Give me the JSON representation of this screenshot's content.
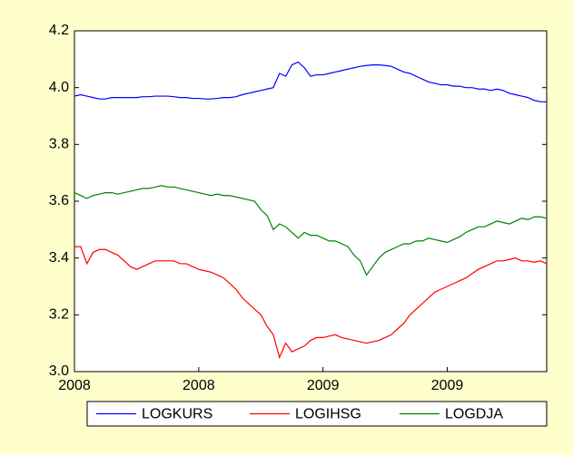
{
  "chart_data": {
    "type": "line",
    "categories": [
      "2008",
      null,
      null,
      null,
      null,
      null,
      null,
      null,
      null,
      null,
      null,
      null,
      null,
      null,
      null,
      null,
      null,
      null,
      null,
      null,
      "2008",
      null,
      null,
      null,
      null,
      null,
      null,
      null,
      null,
      null,
      null,
      null,
      null,
      null,
      null,
      null,
      null,
      null,
      null,
      null,
      "2009",
      null,
      null,
      null,
      null,
      null,
      null,
      null,
      null,
      null,
      null,
      null,
      null,
      null,
      null,
      null,
      null,
      null,
      null,
      null,
      "2009",
      null,
      null,
      null,
      null,
      null,
      null,
      null,
      null,
      null,
      null,
      null,
      null,
      null,
      null,
      null,
      null
    ],
    "series": [
      {
        "name": "LOGKURS",
        "color": "#0000ff",
        "values": [
          3.97,
          3.975,
          3.97,
          3.965,
          3.96,
          3.96,
          3.965,
          3.965,
          3.965,
          3.965,
          3.965,
          3.968,
          3.968,
          3.97,
          3.97,
          3.97,
          3.968,
          3.965,
          3.965,
          3.962,
          3.962,
          3.96,
          3.96,
          3.962,
          3.965,
          3.965,
          3.968,
          3.975,
          3.98,
          3.985,
          3.99,
          3.995,
          4.0,
          4.05,
          4.04,
          4.08,
          4.09,
          4.07,
          4.04,
          4.045,
          4.045,
          4.05,
          4.055,
          4.06,
          4.065,
          4.07,
          4.075,
          4.078,
          4.08,
          4.08,
          4.078,
          4.075,
          4.065,
          4.055,
          4.05,
          4.04,
          4.03,
          4.02,
          4.015,
          4.01,
          4.01,
          4.005,
          4.005,
          4.0,
          4.0,
          3.995,
          3.995,
          3.99,
          3.995,
          3.99,
          3.98,
          3.975,
          3.97,
          3.965,
          3.955,
          3.95,
          3.95
        ]
      },
      {
        "name": "LOGIHSG",
        "color": "#ff0000",
        "values": [
          3.44,
          3.44,
          3.38,
          3.42,
          3.43,
          3.43,
          3.42,
          3.41,
          3.39,
          3.37,
          3.36,
          3.37,
          3.38,
          3.39,
          3.39,
          3.39,
          3.39,
          3.38,
          3.38,
          3.37,
          3.36,
          3.355,
          3.35,
          3.34,
          3.33,
          3.31,
          3.29,
          3.26,
          3.24,
          3.22,
          3.2,
          3.16,
          3.13,
          3.05,
          3.1,
          3.07,
          3.08,
          3.09,
          3.11,
          3.12,
          3.12,
          3.125,
          3.13,
          3.12,
          3.115,
          3.11,
          3.105,
          3.1,
          3.105,
          3.11,
          3.12,
          3.13,
          3.15,
          3.17,
          3.2,
          3.22,
          3.24,
          3.26,
          3.28,
          3.29,
          3.3,
          3.31,
          3.32,
          3.33,
          3.345,
          3.36,
          3.37,
          3.38,
          3.39,
          3.39,
          3.395,
          3.4,
          3.39,
          3.39,
          3.385,
          3.39,
          3.38
        ]
      },
      {
        "name": "LOGDJA",
        "color": "#008000",
        "values": [
          3.63,
          3.62,
          3.61,
          3.62,
          3.625,
          3.63,
          3.63,
          3.625,
          3.63,
          3.635,
          3.64,
          3.645,
          3.645,
          3.65,
          3.655,
          3.65,
          3.65,
          3.645,
          3.64,
          3.635,
          3.63,
          3.625,
          3.62,
          3.625,
          3.62,
          3.62,
          3.615,
          3.61,
          3.605,
          3.6,
          3.57,
          3.55,
          3.5,
          3.52,
          3.51,
          3.49,
          3.47,
          3.49,
          3.48,
          3.48,
          3.47,
          3.46,
          3.46,
          3.45,
          3.44,
          3.41,
          3.39,
          3.34,
          3.37,
          3.4,
          3.42,
          3.43,
          3.44,
          3.45,
          3.45,
          3.46,
          3.46,
          3.47,
          3.465,
          3.46,
          3.455,
          3.465,
          3.475,
          3.49,
          3.5,
          3.51,
          3.51,
          3.52,
          3.53,
          3.525,
          3.52,
          3.53,
          3.54,
          3.535,
          3.545,
          3.545,
          3.54
        ]
      }
    ],
    "ylim": [
      3.0,
      4.2
    ],
    "yticks": [
      {
        "value": 3,
        "label": "3.0"
      },
      3.2,
      3.4,
      3.6,
      3.8,
      {
        "value": 4,
        "label": "4.0"
      },
      4.2
    ],
    "grid": false,
    "legend": "bottom"
  }
}
